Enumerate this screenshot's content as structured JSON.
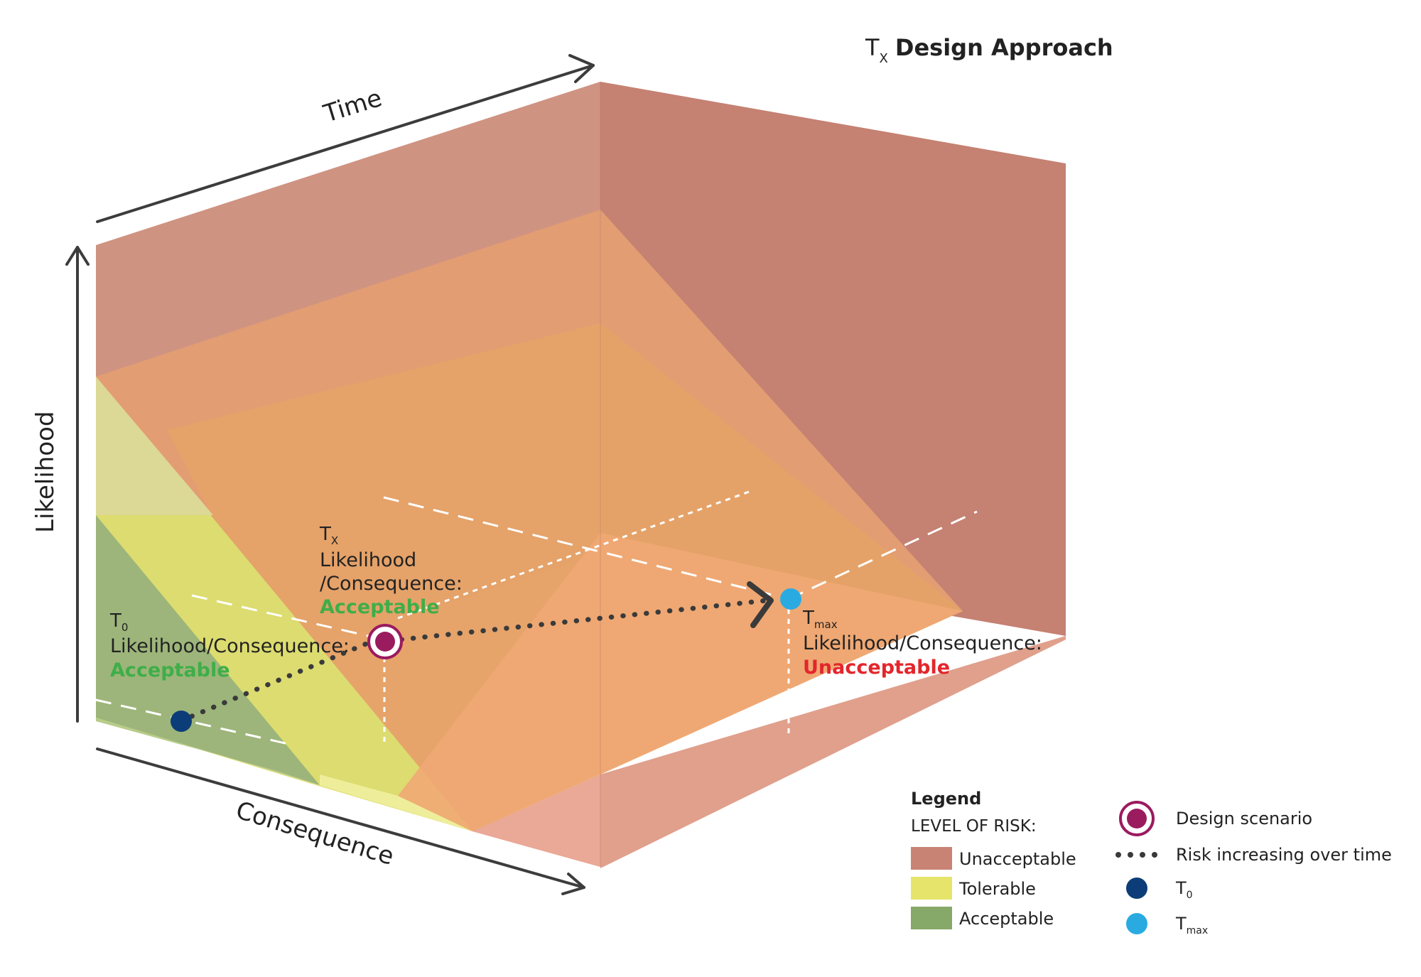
{
  "title": {
    "t_main": "T",
    "t_sub": "X",
    "rest": "Design Approach"
  },
  "axes": {
    "time": "Time",
    "likelihood": "Likelihood",
    "consequence": "Consequence"
  },
  "points": {
    "t0": {
      "t_main": "T",
      "t_sub": "0",
      "line": "Likelihood/Consequence:",
      "status": "Acceptable",
      "status_color": "#3fae49",
      "marker_color": "#0c3d78"
    },
    "tx": {
      "t_main": "T",
      "t_sub": "X",
      "line1": "Likelihood",
      "line2": "/Consequence:",
      "status": "Acceptable",
      "status_color": "#3fae49",
      "marker_color": "#9b1b5f"
    },
    "tmax": {
      "t_main": "T",
      "t_sub": "max",
      "line": "Likelihood/Consequence:",
      "status": "Unacceptable",
      "status_color": "#e3262c",
      "marker_color": "#29abe2"
    }
  },
  "legend": {
    "heading": "Legend",
    "subheading": "LEVEL OF RISK:",
    "levels": [
      {
        "label": "Unacceptable",
        "color": "#c98375"
      },
      {
        "label": "Tolerable",
        "color": "#e6e46a"
      },
      {
        "label": "Acceptable",
        "color": "#86a868"
      }
    ],
    "symbols": {
      "design_scenario": "Design scenario",
      "risk_increasing": "Risk increasing over time",
      "t0_main": "T",
      "t0_sub": "0",
      "tmax_main": "T",
      "tmax_sub": "max"
    }
  },
  "colors": {
    "unacceptable": "#c98375",
    "orange": "#f0a06a",
    "tolerable": "#e6e46a",
    "acceptable": "#86a868",
    "arrow": "#3c3c3c"
  }
}
